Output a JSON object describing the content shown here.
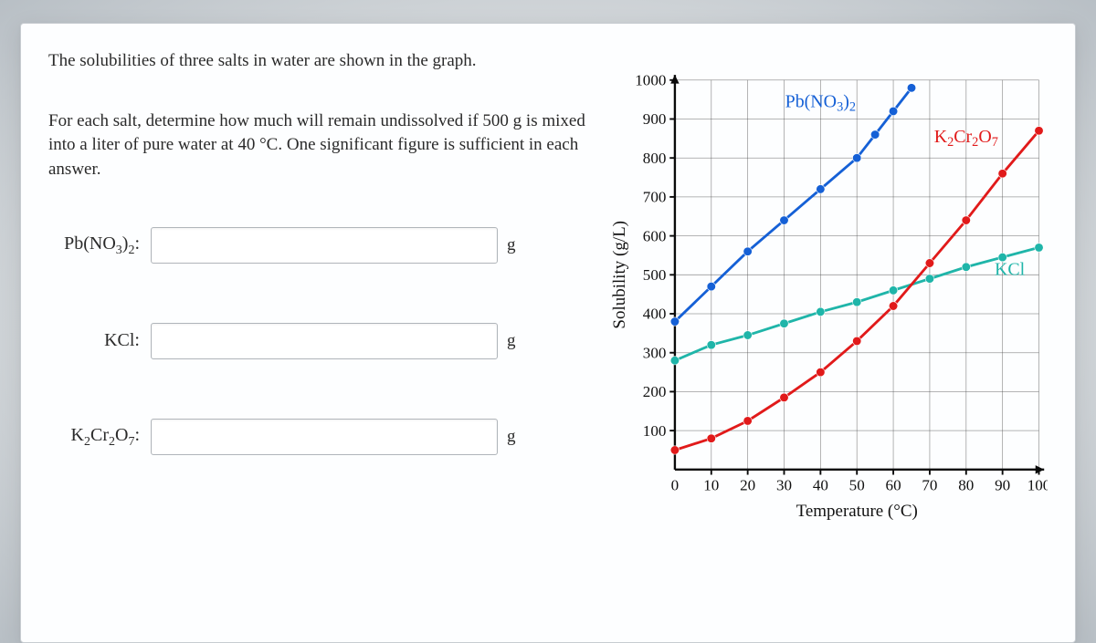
{
  "nav_fragment": "",
  "intro": "The solubilities of three salts in water are shown in the graph.",
  "instructions": "For each salt, determine how much will remain undissolved if 500 g is mixed into a liter of pure water at 40 °C. One significant figure is sufficient in each answer.",
  "answers": [
    {
      "label_html": "Pb(NO<sub>3</sub>)<sub>2</sub>:",
      "unit": "g"
    },
    {
      "label_html": "KCl:",
      "unit": "g"
    },
    {
      "label_html": "K<sub>2</sub>Cr<sub>2</sub>O<sub>7</sub>:",
      "unit": "g"
    }
  ],
  "chart": {
    "type": "line",
    "ylabel": "Solubility (g/L)",
    "xlabel": "Temperature (°C)",
    "xlim": [
      0,
      100
    ],
    "ylim": [
      0,
      1000
    ],
    "xtick_start": 10,
    "xtick_step": 10,
    "ytick_step": 100,
    "grid_color": "#4d4d4d",
    "axis_color": "#0a0a0a",
    "background_color": "#fdfeff",
    "line_width": 3,
    "marker_radius": 5,
    "label_fontsize": 18,
    "title_fontsize": 20,
    "series": [
      {
        "name": "Pb(NO3)2",
        "label_html": "Pb(NO<sub>3</sub>)<sub>2</sub>",
        "color": "#1560d6",
        "label_x": 40,
        "label_y": 930,
        "points": [
          [
            0,
            380
          ],
          [
            10,
            470
          ],
          [
            20,
            560
          ],
          [
            30,
            640
          ],
          [
            40,
            720
          ],
          [
            50,
            800
          ],
          [
            55,
            860
          ],
          [
            60,
            920
          ],
          [
            65,
            980
          ]
        ]
      },
      {
        "name": "KCl",
        "label_html": "KCl",
        "color": "#1fb5a9",
        "label_x": 92,
        "label_y": 500,
        "points": [
          [
            0,
            280
          ],
          [
            10,
            320
          ],
          [
            20,
            345
          ],
          [
            30,
            375
          ],
          [
            40,
            405
          ],
          [
            50,
            430
          ],
          [
            60,
            460
          ],
          [
            70,
            490
          ],
          [
            80,
            520
          ],
          [
            90,
            545
          ],
          [
            100,
            570
          ]
        ]
      },
      {
        "name": "K2Cr2O7",
        "label_html": "K<sub>2</sub>Cr<sub>2</sub>O<sub>7</sub>",
        "color": "#e11a1a",
        "label_x": 80,
        "label_y": 840,
        "points": [
          [
            0,
            50
          ],
          [
            10,
            80
          ],
          [
            20,
            125
          ],
          [
            30,
            185
          ],
          [
            40,
            250
          ],
          [
            50,
            330
          ],
          [
            60,
            420
          ],
          [
            70,
            530
          ],
          [
            80,
            640
          ],
          [
            90,
            760
          ],
          [
            100,
            870
          ]
        ]
      }
    ]
  }
}
